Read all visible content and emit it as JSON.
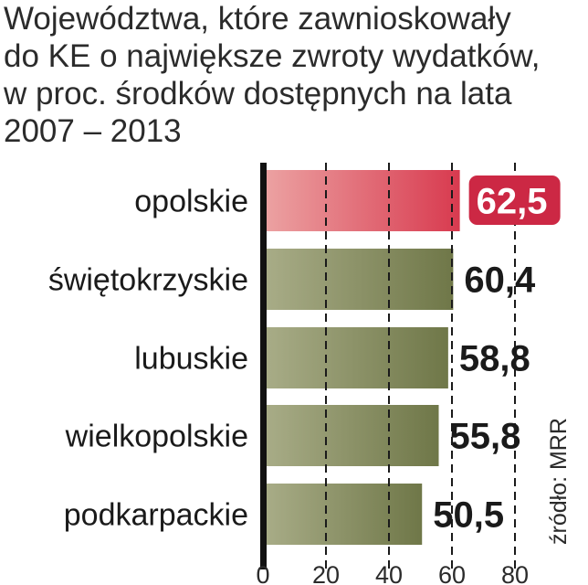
{
  "title_lines": [
    "Województwa, które zawnioskowały",
    "do KE o największe zwroty wydatków,",
    "w proc. środków dostępnych na lata",
    "2007 – 2013"
  ],
  "source": "źródło: MRR",
  "colors": {
    "bar": "#6f7748",
    "bar_light": "#a9ad88",
    "highlight": "#d83a4f",
    "highlight_light": "#eca3a3",
    "badge": "#cc2844"
  },
  "chart_data": {
    "type": "bar",
    "orientation": "horizontal",
    "categories": [
      "opolskie",
      "świętokrzyskie",
      "lubuskie",
      "wielkopolskie",
      "podkarpackie"
    ],
    "values": [
      62.5,
      60.4,
      58.8,
      55.8,
      50.5
    ],
    "value_labels": [
      "62,5",
      "60,4",
      "58,8",
      "55,8",
      "50,5"
    ],
    "highlight_index": 0,
    "xlim": [
      0,
      80
    ],
    "x_ticks": [
      "0",
      "20",
      "40",
      "60",
      "80"
    ],
    "x_tick_values": [
      0,
      20,
      40,
      60,
      80
    ],
    "grid": "dashed vertical lines",
    "xlabel": "",
    "ylabel": ""
  }
}
